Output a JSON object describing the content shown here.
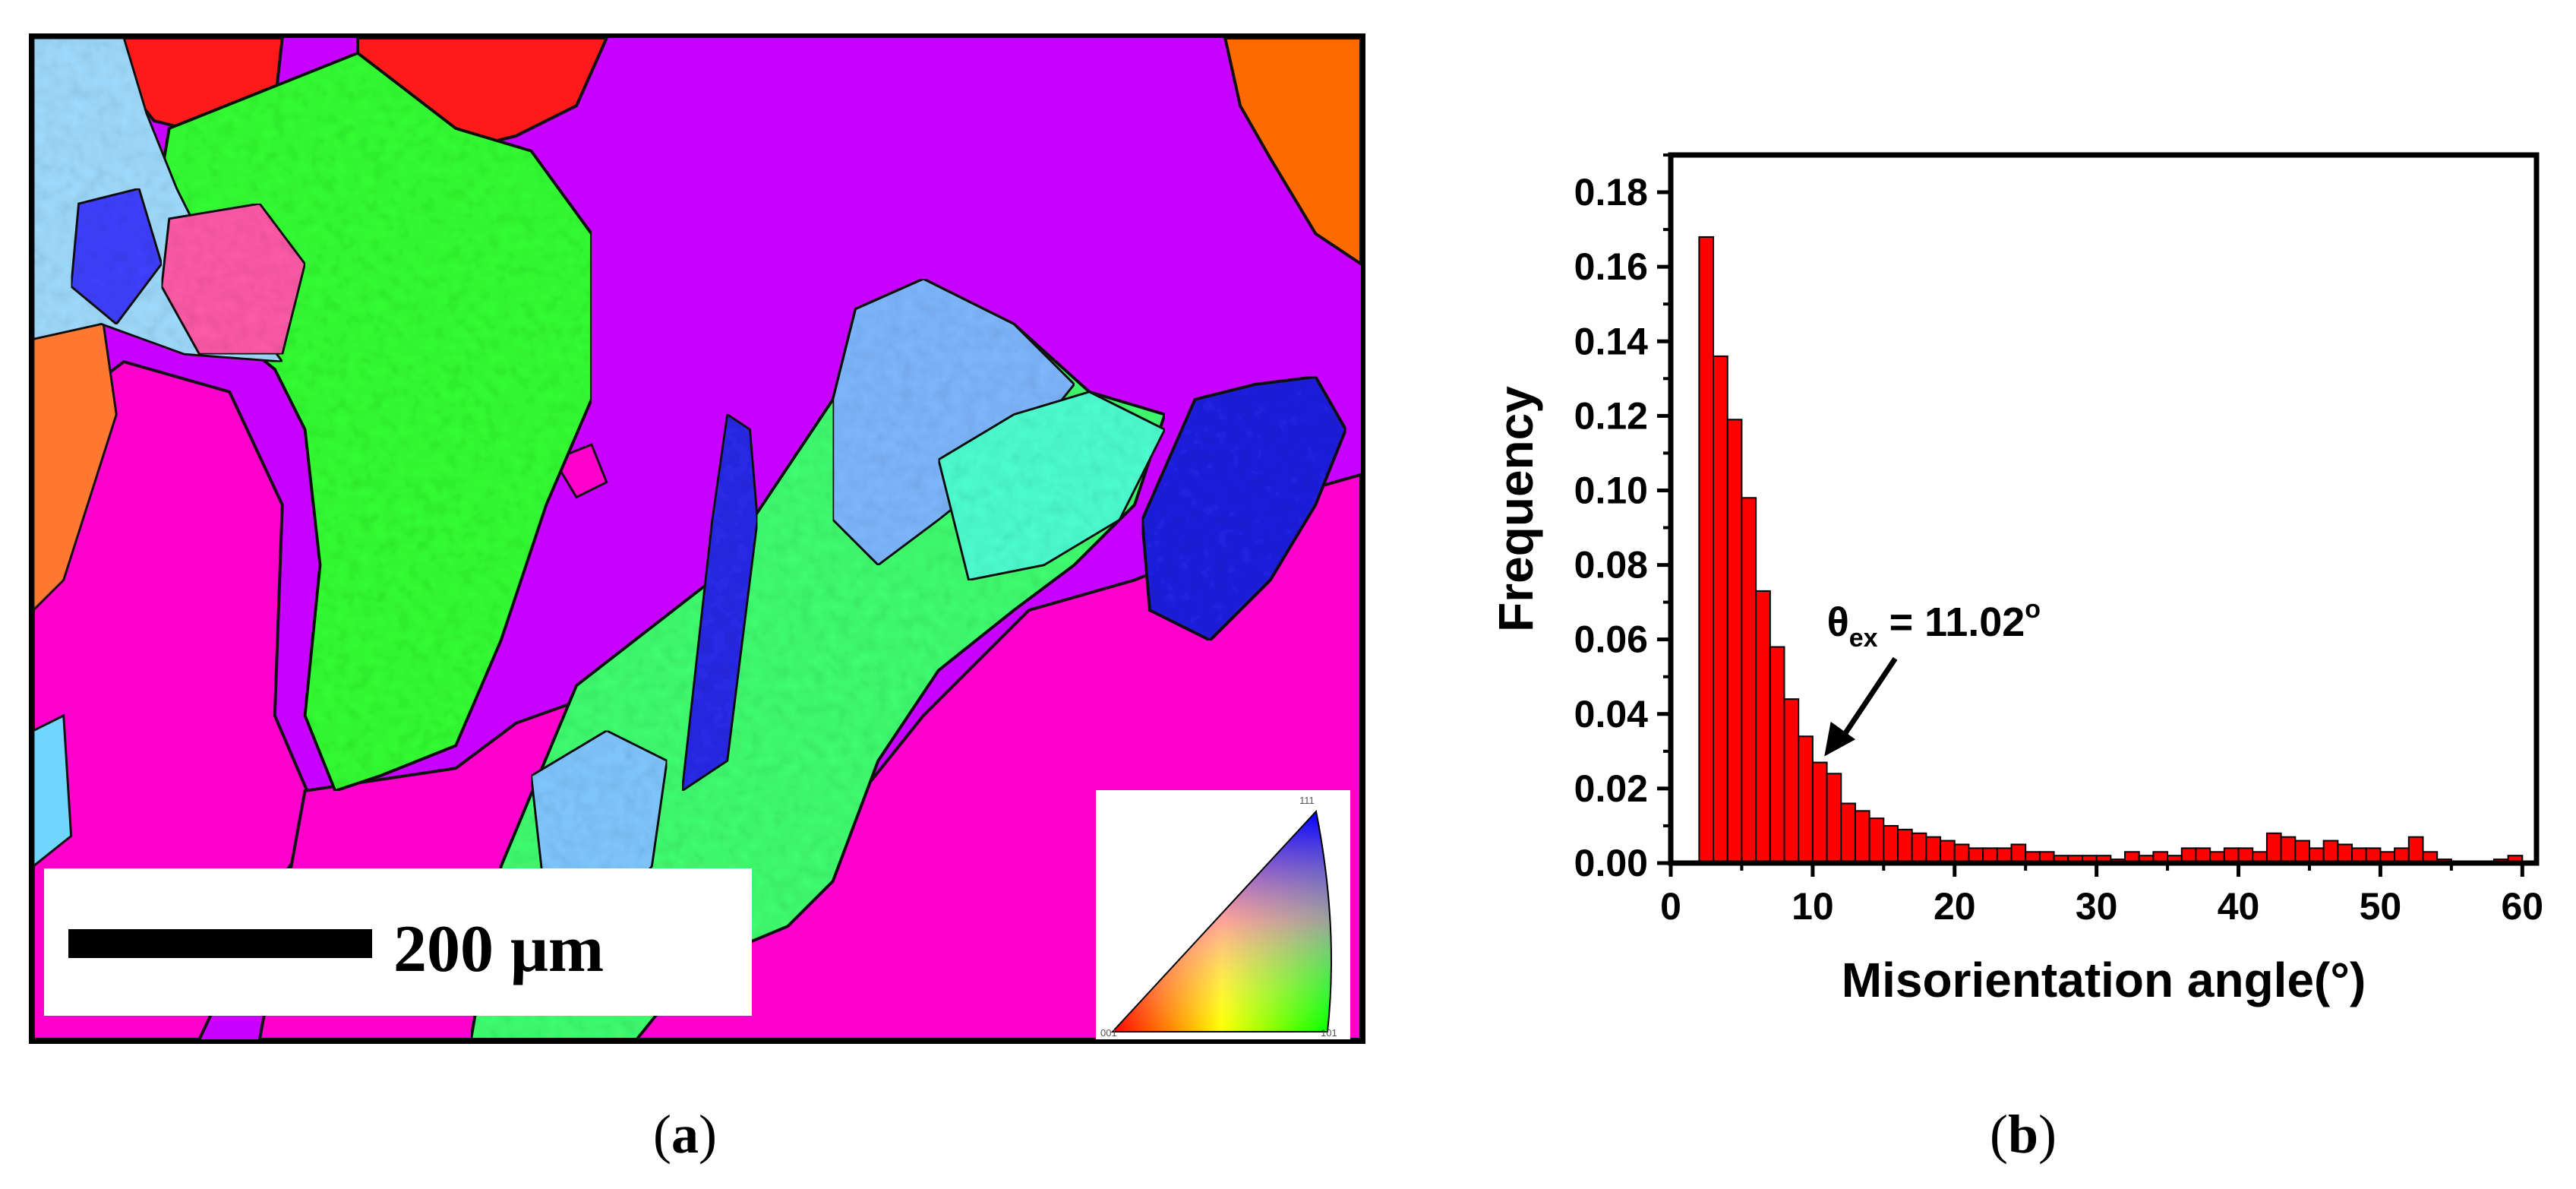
{
  "panel_a": {
    "scale_label": "200 μm",
    "ipf_corners": {
      "top_right": "111",
      "bottom_left": "001",
      "bottom_right": "101"
    },
    "colors": {
      "magenta": "#ff00cc",
      "purple": "#c800ff",
      "green": "#33ff33",
      "red": "#ff1a1a",
      "orange": "#ff6a00",
      "blue": "#2020e0"
    }
  },
  "captions": {
    "a_open": "(",
    "a_letter": "a",
    "a_close": ")",
    "b_open": "(",
    "b_letter": "b",
    "b_close": ")"
  },
  "chart_data": {
    "type": "bar",
    "xlabel": "Misorientation angle(°)",
    "ylabel": "Frequency",
    "xlim": [
      0,
      61
    ],
    "ylim": [
      0,
      0.19
    ],
    "xticks": [
      "0",
      "10",
      "20",
      "30",
      "40",
      "50",
      "60"
    ],
    "yticks": [
      "0.00",
      "0.02",
      "0.04",
      "0.06",
      "0.08",
      "0.10",
      "0.12",
      "0.14",
      "0.16",
      "0.18"
    ],
    "bar_width": 1,
    "bar_color": "#ff0000",
    "x": [
      2.5,
      3.5,
      4.5,
      5.5,
      6.5,
      7.5,
      8.5,
      9.5,
      10.5,
      11.5,
      12.5,
      13.5,
      14.5,
      15.5,
      16.5,
      17.5,
      18.5,
      19.5,
      20.5,
      21.5,
      22.5,
      23.5,
      24.5,
      25.5,
      26.5,
      27.5,
      28.5,
      29.5,
      30.5,
      31.5,
      32.5,
      33.5,
      34.5,
      35.5,
      36.5,
      37.5,
      38.5,
      39.5,
      40.5,
      41.5,
      42.5,
      43.5,
      44.5,
      45.5,
      46.5,
      47.5,
      48.5,
      49.5,
      50.5,
      51.5,
      52.5,
      53.5,
      54.5,
      55.5,
      56.5,
      57.5,
      58.5,
      59.5
    ],
    "values": [
      0.168,
      0.136,
      0.119,
      0.098,
      0.073,
      0.058,
      0.044,
      0.034,
      0.027,
      0.024,
      0.016,
      0.014,
      0.012,
      0.01,
      0.009,
      0.008,
      0.007,
      0.006,
      0.005,
      0.004,
      0.004,
      0.004,
      0.005,
      0.003,
      0.003,
      0.002,
      0.002,
      0.002,
      0.002,
      0.001,
      0.003,
      0.002,
      0.003,
      0.002,
      0.004,
      0.004,
      0.003,
      0.004,
      0.004,
      0.003,
      0.008,
      0.007,
      0.006,
      0.004,
      0.006,
      0.005,
      0.004,
      0.004,
      0.003,
      0.004,
      0.007,
      0.003,
      0.001,
      0.0,
      0.0,
      0.0,
      0.001,
      0.002
    ],
    "annotation": {
      "text_main": "θ",
      "text_sub": "ex",
      "text_eq": " = 11.02",
      "text_sup": "o",
      "target_x": 10.5,
      "target_y": 0.027,
      "text_x": 11.0,
      "text_y": 0.061
    }
  }
}
